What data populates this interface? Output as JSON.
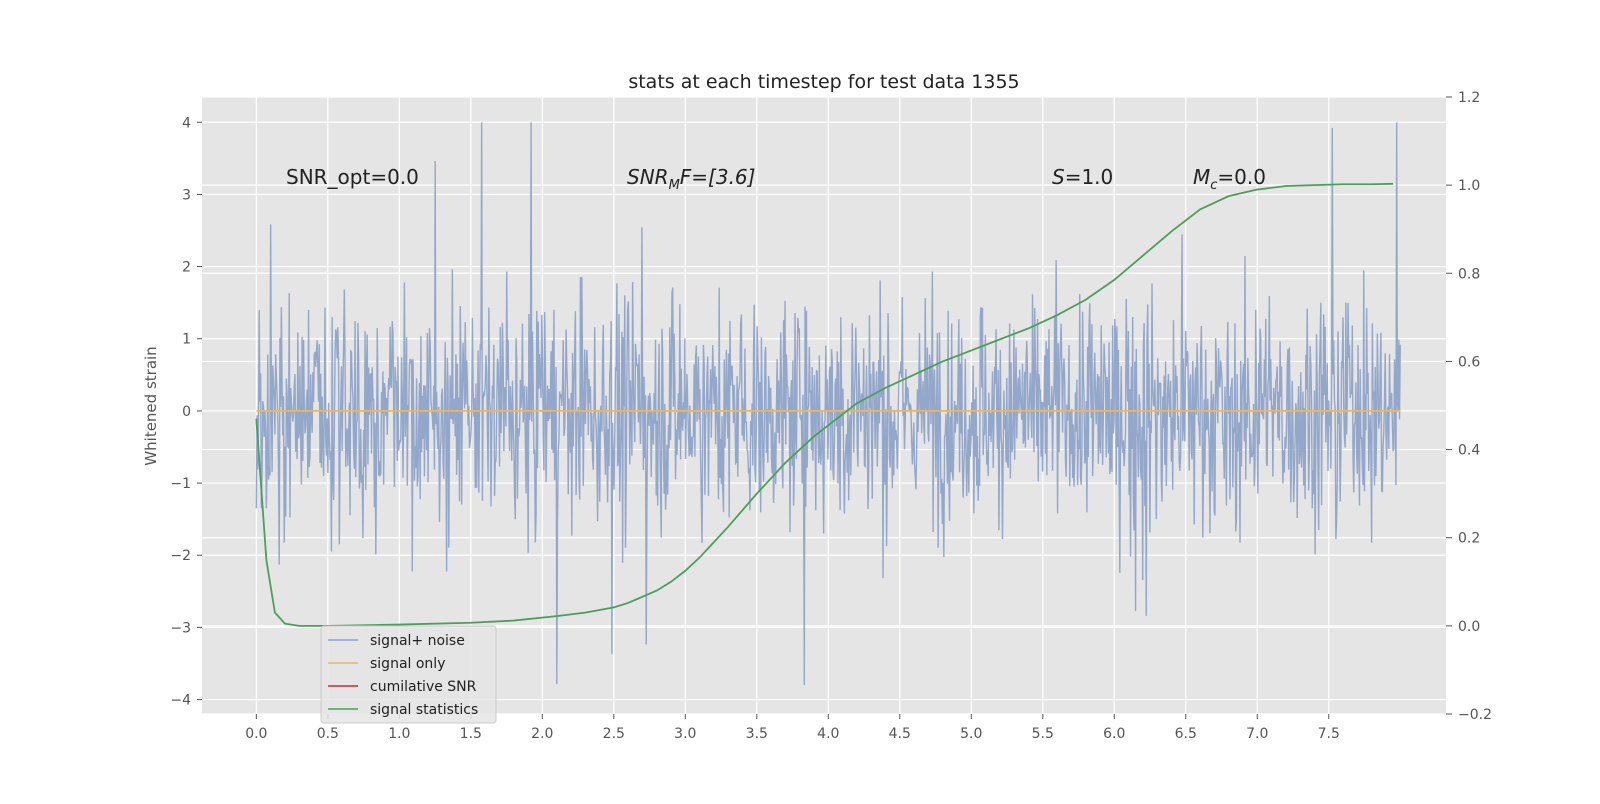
{
  "chart_data": {
    "type": "line",
    "title": "stats at each timestep for test data 1355",
    "ylabel": "Whitened strain",
    "xlim": [
      -0.38,
      8.32
    ],
    "ylim": [
      -4.2,
      4.35
    ],
    "y2lim": [
      -0.2,
      1.2
    ],
    "x_ticks": [
      0.0,
      0.5,
      1.0,
      1.5,
      2.0,
      2.5,
      3.0,
      3.5,
      4.0,
      4.5,
      5.0,
      5.5,
      6.0,
      6.5,
      7.0,
      7.5
    ],
    "x_tick_labels": [
      "0.0",
      "0.5",
      "1.0",
      "1.5",
      "2.0",
      "2.5",
      "3.0",
      "3.5",
      "4.0",
      "4.5",
      "5.0",
      "5.5",
      "6.0",
      "6.5",
      "7.0",
      "7.5"
    ],
    "y_ticks": [
      4,
      3,
      2,
      1,
      0,
      -1,
      -2,
      -3,
      -4
    ],
    "y_tick_labels": [
      "4",
      "3",
      "2",
      "1",
      "0",
      "−1",
      "−2",
      "−3",
      "−4"
    ],
    "y2_ticks": [
      1.2,
      1.0,
      0.8,
      0.6,
      0.4,
      0.2,
      0.0,
      -0.2
    ],
    "y2_tick_labels": [
      "1.2",
      "1.0",
      "0.8",
      "0.6",
      "0.4",
      "0.2",
      "0.0",
      "−0.2"
    ],
    "grid": true,
    "legend_position": "lower-left",
    "annotations": {
      "snr_opt": "SNR_opt=0.0",
      "snr_mf_main": "SNR",
      "snr_mf_sub": "M",
      "snr_mf_rest": "F=[3.6]",
      "s_sym": "S",
      "s_rest": "=1.0",
      "mc_sym": "M",
      "mc_sub": "c",
      "mc_rest": "=0.0"
    },
    "series": [
      {
        "name": "signal+ noise",
        "color": "#8ea3c9",
        "axis": "left",
        "x_range": [
          0.0,
          8.0
        ],
        "samples": 1600,
        "distribution": "noise, approx range -3.8 to 4.0"
      },
      {
        "name": "signal only",
        "color": "#e8b95c",
        "axis": "left",
        "x": [
          0.0,
          8.0
        ],
        "y": [
          0.0,
          0.0
        ]
      },
      {
        "name": "cumilative SNR",
        "color": "#d62728",
        "axis": "left",
        "x": [],
        "y": []
      },
      {
        "name": "signal statistics",
        "color": "#4aa05a",
        "axis": "right",
        "x": [
          0.0,
          0.07,
          0.13,
          0.2,
          0.3,
          0.5,
          1.0,
          1.5,
          1.8,
          2.1,
          2.3,
          2.5,
          2.6,
          2.8,
          2.9,
          3.0,
          3.1,
          3.2,
          3.3,
          3.5,
          3.7,
          3.9,
          4.0,
          4.2,
          4.4,
          4.6,
          4.8,
          5.0,
          5.2,
          5.4,
          5.6,
          5.8,
          6.0,
          6.2,
          6.4,
          6.6,
          6.8,
          7.0,
          7.2,
          7.4,
          7.6,
          7.8,
          7.95
        ],
        "y": [
          0.47,
          0.15,
          0.03,
          0.005,
          0.0,
          0.0,
          0.003,
          0.007,
          0.012,
          0.022,
          0.03,
          0.042,
          0.052,
          0.08,
          0.1,
          0.125,
          0.155,
          0.19,
          0.225,
          0.3,
          0.37,
          0.43,
          0.455,
          0.505,
          0.54,
          0.57,
          0.6,
          0.625,
          0.65,
          0.675,
          0.705,
          0.74,
          0.785,
          0.84,
          0.895,
          0.945,
          0.975,
          0.99,
          0.998,
          1.0,
          1.002,
          1.002,
          1.003
        ]
      }
    ]
  }
}
